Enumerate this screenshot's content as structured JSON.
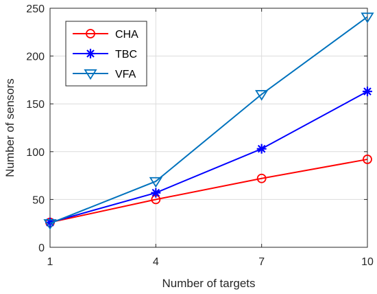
{
  "chart_data": {
    "type": "line",
    "xlabel": "Number of targets",
    "ylabel": "Number of sensors",
    "xlim": [
      1,
      10
    ],
    "ylim": [
      0,
      250
    ],
    "xticks": [
      1,
      4,
      7,
      10
    ],
    "yticks": [
      0,
      50,
      100,
      150,
      200,
      250
    ],
    "grid": true,
    "legend_position": "top-left",
    "x": [
      1,
      4,
      7,
      10
    ],
    "series": [
      {
        "name": "CHA",
        "values": [
          26,
          50,
          72,
          92
        ],
        "color": "#ff0000",
        "marker": "circle"
      },
      {
        "name": "TBC",
        "values": [
          26,
          57,
          103,
          163
        ],
        "color": "#0000ff",
        "marker": "asterisk"
      },
      {
        "name": "VFA",
        "values": [
          25,
          69,
          160,
          241
        ],
        "color": "#0072bd",
        "marker": "triangle-down"
      }
    ]
  }
}
